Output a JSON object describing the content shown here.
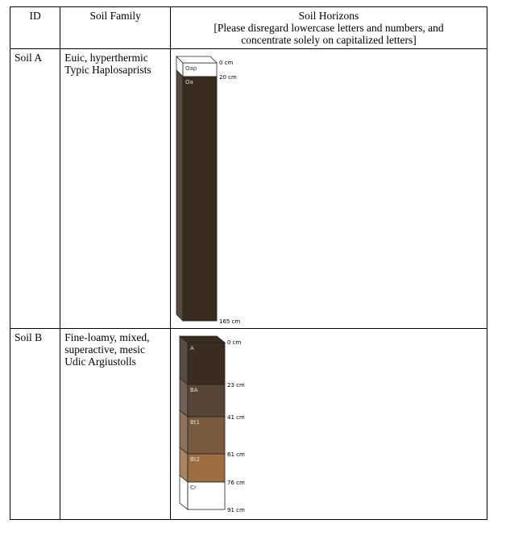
{
  "headers": {
    "id": "ID",
    "family": "Soil Family",
    "horizons_title": "Soil Horizons",
    "horizons_note": "[Please disregard lowercase letters and numbers, and concentrate solely on capitalized letters]"
  },
  "soils": [
    {
      "id": "Soil A",
      "family": "Euic, hyperthermic Typic Haplosaprists",
      "horizons": [
        {
          "name": "Oap",
          "top_cm": 0,
          "color": "#ffffff"
        },
        {
          "name": "Oa",
          "top_cm": 20,
          "color": "#3a2b1f"
        }
      ],
      "bottom_cm": 165,
      "depth_labels": [
        "0 cm",
        "20 cm",
        "165 cm"
      ]
    },
    {
      "id": "Soil B",
      "family": "Fine-loamy, mixed, superactive, mesic Udic Argiustolls",
      "horizons": [
        {
          "name": "A",
          "top_cm": 0,
          "color": "#3b2c20"
        },
        {
          "name": "BA",
          "top_cm": 23,
          "color": "#574536"
        },
        {
          "name": "Bt1",
          "top_cm": 41,
          "color": "#7a5a3d"
        },
        {
          "name": "Bt2",
          "top_cm": 61,
          "color": "#9c6e42"
        },
        {
          "name": "Cr",
          "top_cm": 76,
          "color": "#ffffff"
        }
      ],
      "bottom_cm": 91,
      "depth_labels": [
        "0 cm",
        "23 cm",
        "41 cm",
        "61 cm",
        "76 cm",
        "91 cm"
      ]
    }
  ]
}
